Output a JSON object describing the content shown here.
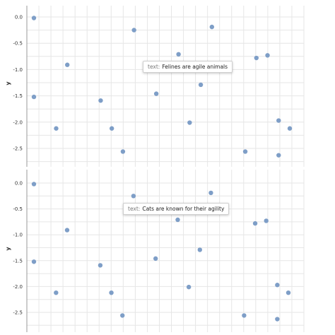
{
  "chart_data": [
    {
      "type": "scatter",
      "title": "",
      "xlabel": "",
      "ylabel": "y",
      "ylim": [
        -2.8,
        0.15
      ],
      "yticks": [
        "0.0",
        "-0.5",
        "-1.0",
        "-1.5",
        "-2.0",
        "-2.5"
      ],
      "grid": true,
      "point_color": "#7e9ec7",
      "x": [
        0,
        2,
        3,
        6,
        7,
        8,
        9,
        11,
        13,
        14,
        15,
        16,
        19,
        20,
        21,
        22,
        23
      ],
      "y": [
        -1.52,
        -2.12,
        -0.91,
        -1.59,
        -2.12,
        -2.56,
        -0.25,
        -1.46,
        -0.71,
        -2.01,
        -1.29,
        -0.19,
        -2.56,
        -0.78,
        -0.73,
        -2.63,
        -2.12
      ],
      "y_extra_points": [
        [
          0,
          -0.02
        ],
        [
          22,
          -1.97
        ]
      ],
      "tooltip": {
        "key": "text:",
        "value": "Felines are agile animals"
      }
    },
    {
      "type": "scatter",
      "title": "",
      "xlabel": "",
      "ylabel": "y",
      "ylim": [
        -2.8,
        0.15
      ],
      "yticks": [
        "0.0",
        "-0.5",
        "-1.0",
        "-1.5",
        "-2.0",
        "-2.5"
      ],
      "grid": true,
      "point_color": "#7e9ec7",
      "x": [
        0,
        2,
        3,
        6,
        7,
        8,
        9,
        11,
        13,
        14,
        15,
        16,
        19,
        20,
        21,
        22,
        23
      ],
      "y": [
        -1.52,
        -2.12,
        -0.91,
        -1.59,
        -2.12,
        -2.56,
        -0.25,
        -1.46,
        -0.71,
        -2.01,
        -1.29,
        -0.19,
        -2.56,
        -0.78,
        -0.73,
        -2.63,
        -2.12
      ],
      "y_extra_points": [
        [
          0,
          -0.02
        ],
        [
          22,
          -1.97
        ]
      ],
      "tooltip": {
        "key": "text:",
        "value": "Cats are known for their agility"
      }
    }
  ]
}
